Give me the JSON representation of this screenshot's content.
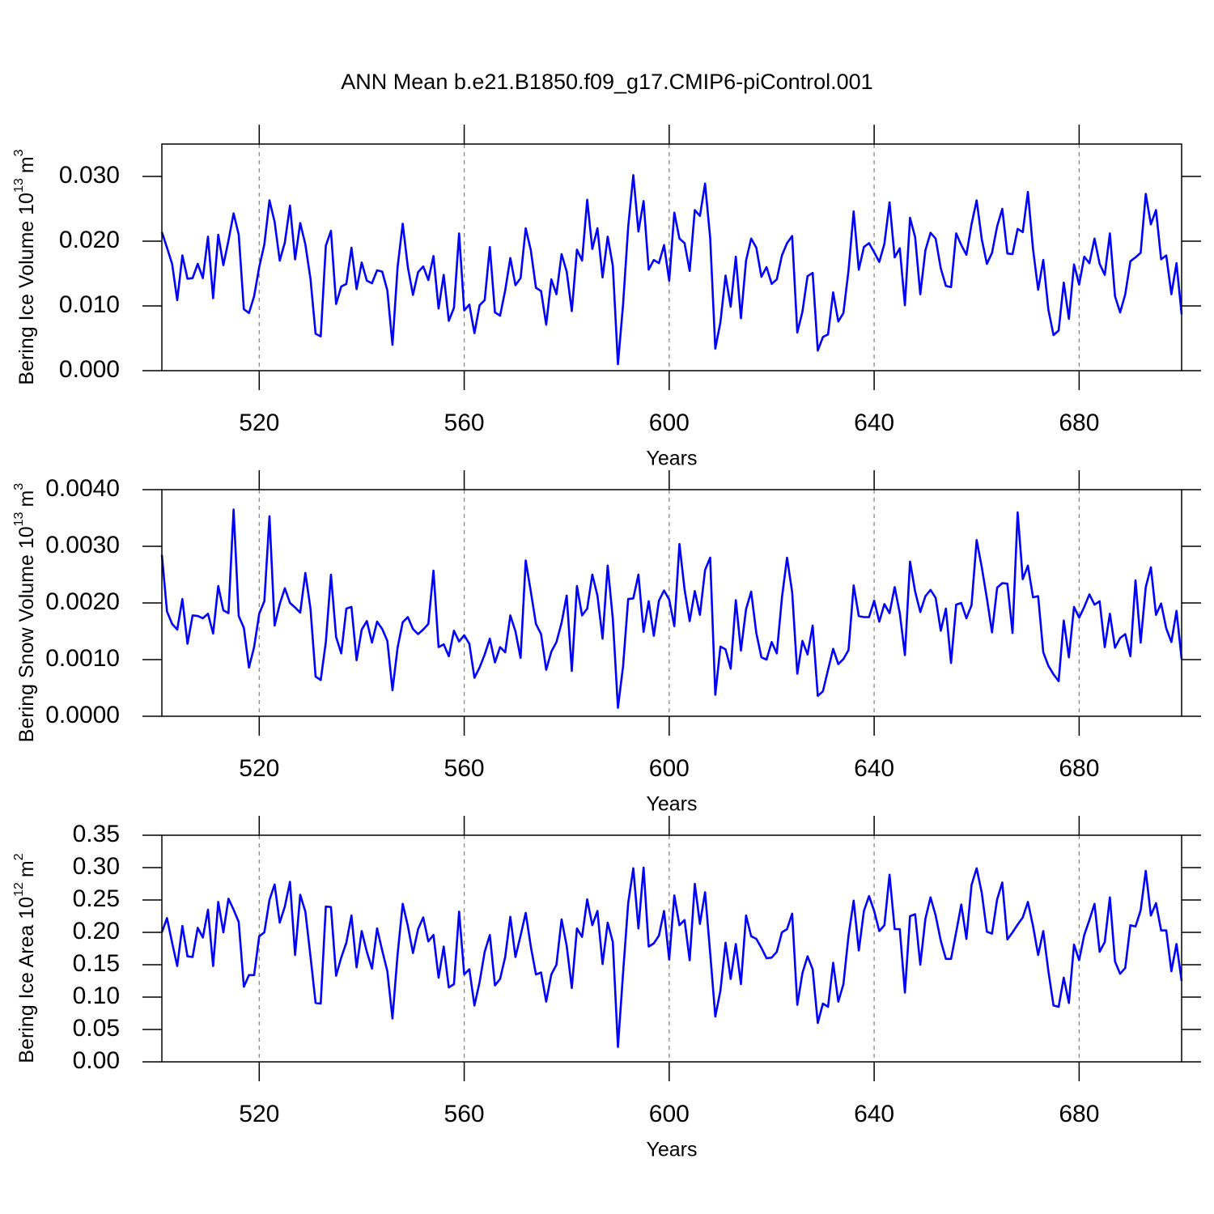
{
  "title": "ANN Mean b.e21.B1850.f09_g17.CMIP6-piControl.001",
  "chart_data": [
    {
      "type": "line",
      "xlabel": "Years",
      "ylabel": {
        "text": "Bering Ice Volume 10",
        "exponent": "13",
        "unit": "m",
        "unit_exponent": "3"
      },
      "xlim": [
        501,
        700
      ],
      "xticks": [
        520,
        560,
        600,
        640,
        680
      ],
      "ylim": [
        0,
        0.035
      ],
      "yticks": [
        {
          "value": 0,
          "label": "0.000"
        },
        {
          "value": 0.01,
          "label": "0.010"
        },
        {
          "value": 0.02,
          "label": "0.020"
        },
        {
          "value": 0.03,
          "label": "0.030"
        }
      ],
      "grid": "x",
      "series": [
        {
          "color": "#0000ff",
          "values": [
            0.0214,
            0.019,
            0.0165,
            0.0109,
            0.0178,
            0.0142,
            0.0143,
            0.0165,
            0.0143,
            0.0207,
            0.0112,
            0.021,
            0.0163,
            0.0201,
            0.0243,
            0.021,
            0.0095,
            0.0089,
            0.0115,
            0.016,
            0.0195,
            0.0263,
            0.023,
            0.017,
            0.0198,
            0.0255,
            0.0172,
            0.0228,
            0.0195,
            0.0142,
            0.0057,
            0.0053,
            0.0193,
            0.0216,
            0.0103,
            0.013,
            0.0134,
            0.019,
            0.0126,
            0.0167,
            0.0139,
            0.0135,
            0.0155,
            0.0153,
            0.0124,
            0.004,
            0.016,
            0.0227,
            0.016,
            0.0117,
            0.0152,
            0.0161,
            0.014,
            0.0177,
            0.0096,
            0.0148,
            0.0077,
            0.0097,
            0.0212,
            0.0093,
            0.0102,
            0.0058,
            0.0101,
            0.0109,
            0.0191,
            0.009,
            0.0085,
            0.0124,
            0.0174,
            0.0132,
            0.0143,
            0.022,
            0.0186,
            0.0128,
            0.0123,
            0.0071,
            0.0141,
            0.0118,
            0.018,
            0.0153,
            0.0092,
            0.0187,
            0.017,
            0.0264,
            0.0188,
            0.022,
            0.0144,
            0.0207,
            0.0162,
            0.001,
            0.0102,
            0.0222,
            0.0302,
            0.0215,
            0.0262,
            0.0156,
            0.0171,
            0.0166,
            0.0194,
            0.0139,
            0.0244,
            0.0204,
            0.0197,
            0.0154,
            0.0248,
            0.0239,
            0.0289,
            0.0205,
            0.0034,
            0.0075,
            0.0147,
            0.0099,
            0.0176,
            0.0081,
            0.017,
            0.0204,
            0.019,
            0.0145,
            0.016,
            0.0134,
            0.0141,
            0.0178,
            0.0197,
            0.0208,
            0.0059,
            0.0091,
            0.0146,
            0.0151,
            0.0031,
            0.0052,
            0.0056,
            0.0121,
            0.0076,
            0.0089,
            0.0155,
            0.0246,
            0.0156,
            0.0191,
            0.0197,
            0.0183,
            0.0168,
            0.0196,
            0.026,
            0.0175,
            0.0189,
            0.0101,
            0.0236,
            0.0206,
            0.0118,
            0.0186,
            0.0213,
            0.0204,
            0.0158,
            0.0131,
            0.0129,
            0.0212,
            0.0194,
            0.0179,
            0.0226,
            0.0263,
            0.0203,
            0.0165,
            0.0182,
            0.0223,
            0.025,
            0.0181,
            0.018,
            0.0219,
            0.0214,
            0.0276,
            0.0188,
            0.0125,
            0.0171,
            0.0094,
            0.0055,
            0.0062,
            0.0136,
            0.008,
            0.0164,
            0.0133,
            0.0176,
            0.0166,
            0.0204,
            0.0165,
            0.0148,
            0.0212,
            0.0115,
            0.009,
            0.0118,
            0.0169,
            0.0175,
            0.0182,
            0.0273,
            0.0226,
            0.0248,
            0.0172,
            0.0178,
            0.0118,
            0.0166,
            0.0087
          ]
        }
      ]
    },
    {
      "type": "line",
      "xlabel": "Years",
      "ylabel": {
        "text": "Bering Snow Volume 10",
        "exponent": "13",
        "unit": "m",
        "unit_exponent": "3"
      },
      "xlim": [
        501,
        700
      ],
      "xticks": [
        520,
        560,
        600,
        640,
        680
      ],
      "ylim": [
        0,
        0.004
      ],
      "yticks": [
        {
          "value": 0,
          "label": "0.0000"
        },
        {
          "value": 0.001,
          "label": "0.0010"
        },
        {
          "value": 0.002,
          "label": "0.0020"
        },
        {
          "value": 0.003,
          "label": "0.0030"
        },
        {
          "value": 0.004,
          "label": "0.0040"
        }
      ],
      "grid": "x",
      "series": [
        {
          "color": "#0000ff",
          "values": [
            0.00285,
            0.00185,
            0.00163,
            0.00153,
            0.00207,
            0.00128,
            0.00178,
            0.00177,
            0.00173,
            0.00181,
            0.00146,
            0.0023,
            0.00187,
            0.00182,
            0.00365,
            0.00177,
            0.00156,
            0.00086,
            0.00122,
            0.00181,
            0.00203,
            0.00353,
            0.0016,
            0.00198,
            0.00226,
            0.002,
            0.00192,
            0.00183,
            0.00253,
            0.0019,
            0.0007,
            0.00064,
            0.00131,
            0.0025,
            0.0014,
            0.00111,
            0.0019,
            0.00193,
            0.00099,
            0.00153,
            0.00168,
            0.0013,
            0.00167,
            0.00154,
            0.00133,
            0.00046,
            0.00121,
            0.00166,
            0.00175,
            0.00154,
            0.00145,
            0.00153,
            0.00163,
            0.00257,
            0.00122,
            0.00127,
            0.00106,
            0.00151,
            0.00132,
            0.00143,
            0.00128,
            0.00068,
            0.00086,
            0.00109,
            0.00137,
            0.00095,
            0.00122,
            0.00113,
            0.00178,
            0.0015,
            0.00103,
            0.00275,
            0.0022,
            0.00163,
            0.00145,
            0.00082,
            0.00114,
            0.00131,
            0.00165,
            0.00213,
            0.0008,
            0.0023,
            0.00178,
            0.0019,
            0.0025,
            0.00213,
            0.00137,
            0.00266,
            0.00172,
            0.00015,
            0.00088,
            0.00207,
            0.00208,
            0.0025,
            0.00149,
            0.00203,
            0.00142,
            0.00204,
            0.00222,
            0.00206,
            0.00159,
            0.00304,
            0.00224,
            0.00168,
            0.00221,
            0.00179,
            0.00258,
            0.0028,
            0.00038,
            0.00123,
            0.00118,
            0.00084,
            0.00205,
            0.00116,
            0.00189,
            0.0022,
            0.00147,
            0.00104,
            0.001,
            0.00131,
            0.00111,
            0.00209,
            0.0028,
            0.00219,
            0.00075,
            0.00133,
            0.00109,
            0.0016,
            0.00036,
            0.00044,
            0.00082,
            0.00119,
            0.00092,
            0.00101,
            0.00117,
            0.00231,
            0.00177,
            0.00175,
            0.00175,
            0.00204,
            0.00167,
            0.00198,
            0.00182,
            0.00228,
            0.00182,
            0.00108,
            0.00273,
            0.0022,
            0.00184,
            0.00212,
            0.00223,
            0.00209,
            0.00151,
            0.0019,
            0.00094,
            0.00197,
            0.002,
            0.00173,
            0.00196,
            0.00311,
            0.00263,
            0.00208,
            0.00148,
            0.00227,
            0.00235,
            0.00234,
            0.00147,
            0.0036,
            0.00242,
            0.00266,
            0.0021,
            0.00212,
            0.00113,
            0.00089,
            0.00074,
            0.00062,
            0.00169,
            0.00104,
            0.00193,
            0.00174,
            0.00193,
            0.00215,
            0.00197,
            0.00203,
            0.00122,
            0.00181,
            0.00121,
            0.00138,
            0.00145,
            0.00106,
            0.0024,
            0.0013,
            0.00228,
            0.00263,
            0.00179,
            0.00199,
            0.00155,
            0.00131,
            0.00186,
            0.00101
          ]
        }
      ]
    },
    {
      "type": "line",
      "xlabel": "Years",
      "ylabel": {
        "text": "Bering Ice Area 10",
        "exponent": "12",
        "unit": "m",
        "unit_exponent": "2"
      },
      "xlim": [
        501,
        700
      ],
      "xticks": [
        520,
        560,
        600,
        640,
        680
      ],
      "ylim": [
        0,
        0.35
      ],
      "yticks": [
        {
          "value": 0,
          "label": "0.00"
        },
        0.05,
        {
          "value": 0.1,
          "label": "0.10"
        },
        0.15,
        {
          "value": 0.2,
          "label": "0.20"
        },
        0.25,
        {
          "value": 0.3,
          "label": "0.30"
        },
        0.35
      ],
      "grid": "x",
      "series": [
        {
          "color": "#0000ff",
          "values": [
            0.2,
            0.222,
            0.184,
            0.148,
            0.21,
            0.163,
            0.162,
            0.207,
            0.192,
            0.235,
            0.148,
            0.247,
            0.2,
            0.252,
            0.235,
            0.216,
            0.116,
            0.134,
            0.134,
            0.194,
            0.2,
            0.25,
            0.274,
            0.215,
            0.24,
            0.278,
            0.165,
            0.258,
            0.232,
            0.163,
            0.091,
            0.09,
            0.24,
            0.239,
            0.133,
            0.161,
            0.184,
            0.226,
            0.146,
            0.202,
            0.17,
            0.144,
            0.206,
            0.172,
            0.14,
            0.067,
            0.166,
            0.244,
            0.21,
            0.168,
            0.205,
            0.223,
            0.186,
            0.196,
            0.13,
            0.178,
            0.115,
            0.12,
            0.232,
            0.135,
            0.143,
            0.087,
            0.123,
            0.17,
            0.196,
            0.118,
            0.128,
            0.162,
            0.224,
            0.162,
            0.195,
            0.23,
            0.178,
            0.135,
            0.138,
            0.093,
            0.135,
            0.15,
            0.22,
            0.179,
            0.114,
            0.206,
            0.193,
            0.251,
            0.211,
            0.233,
            0.151,
            0.215,
            0.185,
            0.023,
            0.137,
            0.245,
            0.299,
            0.206,
            0.3,
            0.178,
            0.183,
            0.195,
            0.233,
            0.158,
            0.257,
            0.211,
            0.219,
            0.157,
            0.275,
            0.213,
            0.262,
            0.168,
            0.07,
            0.11,
            0.184,
            0.128,
            0.182,
            0.12,
            0.226,
            0.194,
            0.19,
            0.176,
            0.16,
            0.161,
            0.17,
            0.2,
            0.205,
            0.229,
            0.088,
            0.137,
            0.163,
            0.143,
            0.06,
            0.09,
            0.085,
            0.153,
            0.093,
            0.12,
            0.195,
            0.249,
            0.172,
            0.233,
            0.256,
            0.233,
            0.202,
            0.211,
            0.289,
            0.205,
            0.205,
            0.107,
            0.225,
            0.228,
            0.15,
            0.221,
            0.254,
            0.226,
            0.187,
            0.159,
            0.159,
            0.2,
            0.243,
            0.19,
            0.273,
            0.299,
            0.261,
            0.201,
            0.198,
            0.251,
            0.277,
            0.189,
            0.2,
            0.212,
            0.223,
            0.247,
            0.21,
            0.165,
            0.202,
            0.14,
            0.087,
            0.085,
            0.13,
            0.091,
            0.181,
            0.157,
            0.196,
            0.219,
            0.244,
            0.17,
            0.185,
            0.254,
            0.155,
            0.136,
            0.145,
            0.211,
            0.209,
            0.234,
            0.295,
            0.226,
            0.245,
            0.203,
            0.203,
            0.14,
            0.182,
            0.125
          ]
        }
      ]
    }
  ]
}
